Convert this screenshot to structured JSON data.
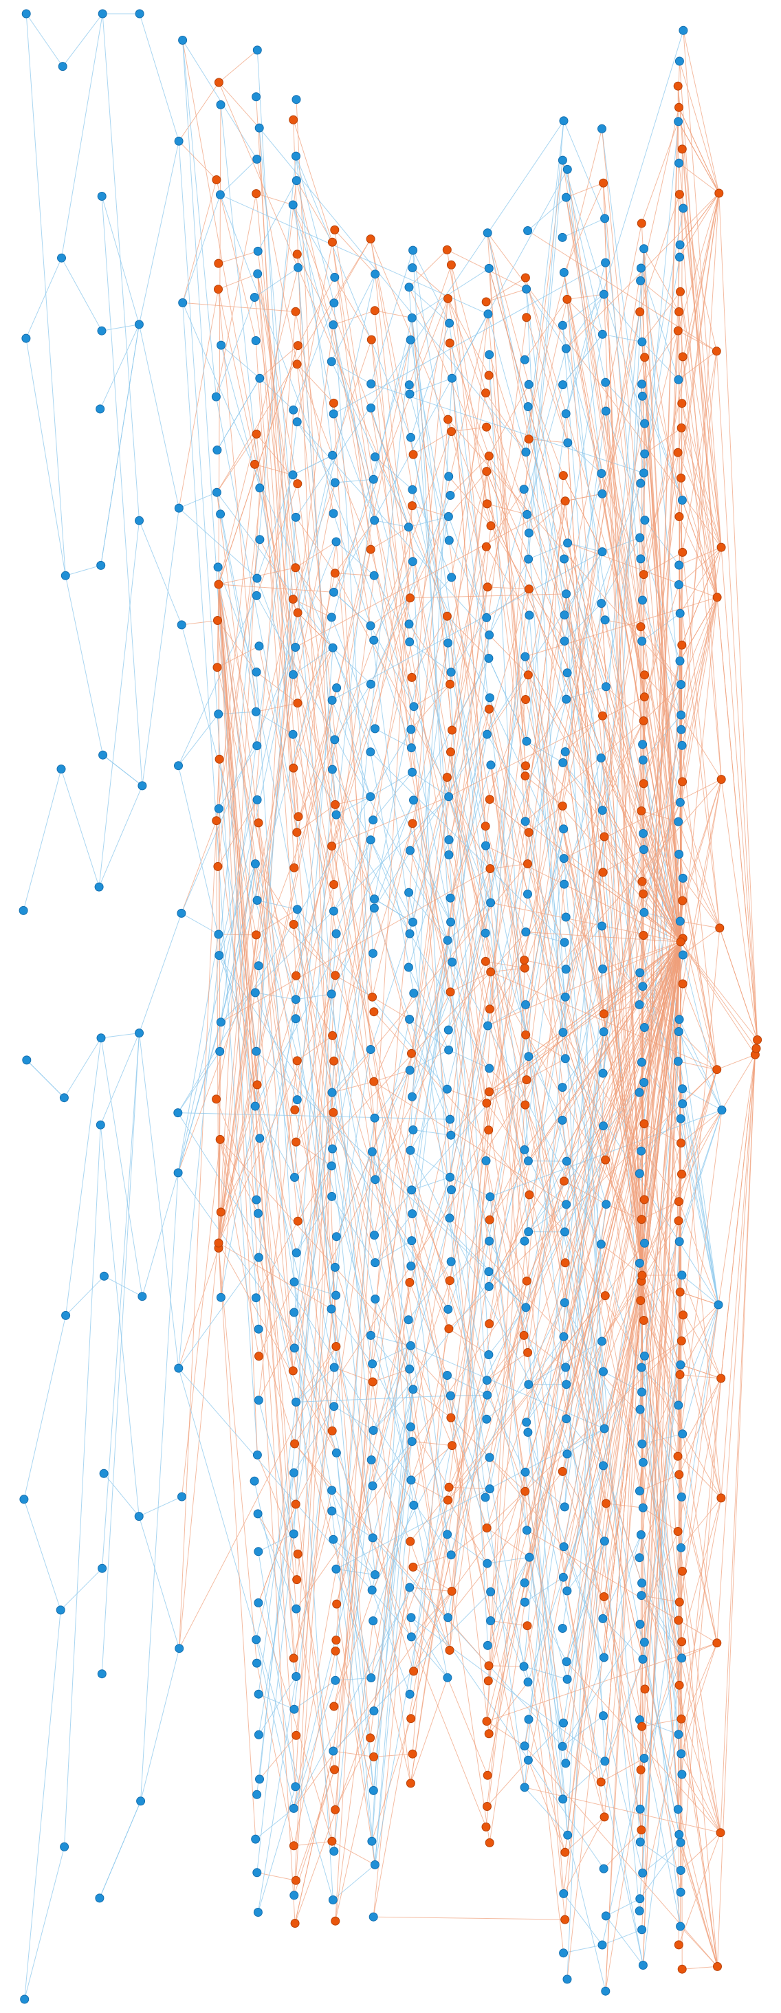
{
  "diagram": {
    "type": "network-graph",
    "layout": "layered-tree",
    "colors": {
      "blue_node": "#1f8fd6",
      "orange_node": "#e9560c",
      "blue_edge": "#8ec8ec",
      "orange_edge": "#f0a07a",
      "background": "#ffffff"
    },
    "labels_visible": false
  }
}
